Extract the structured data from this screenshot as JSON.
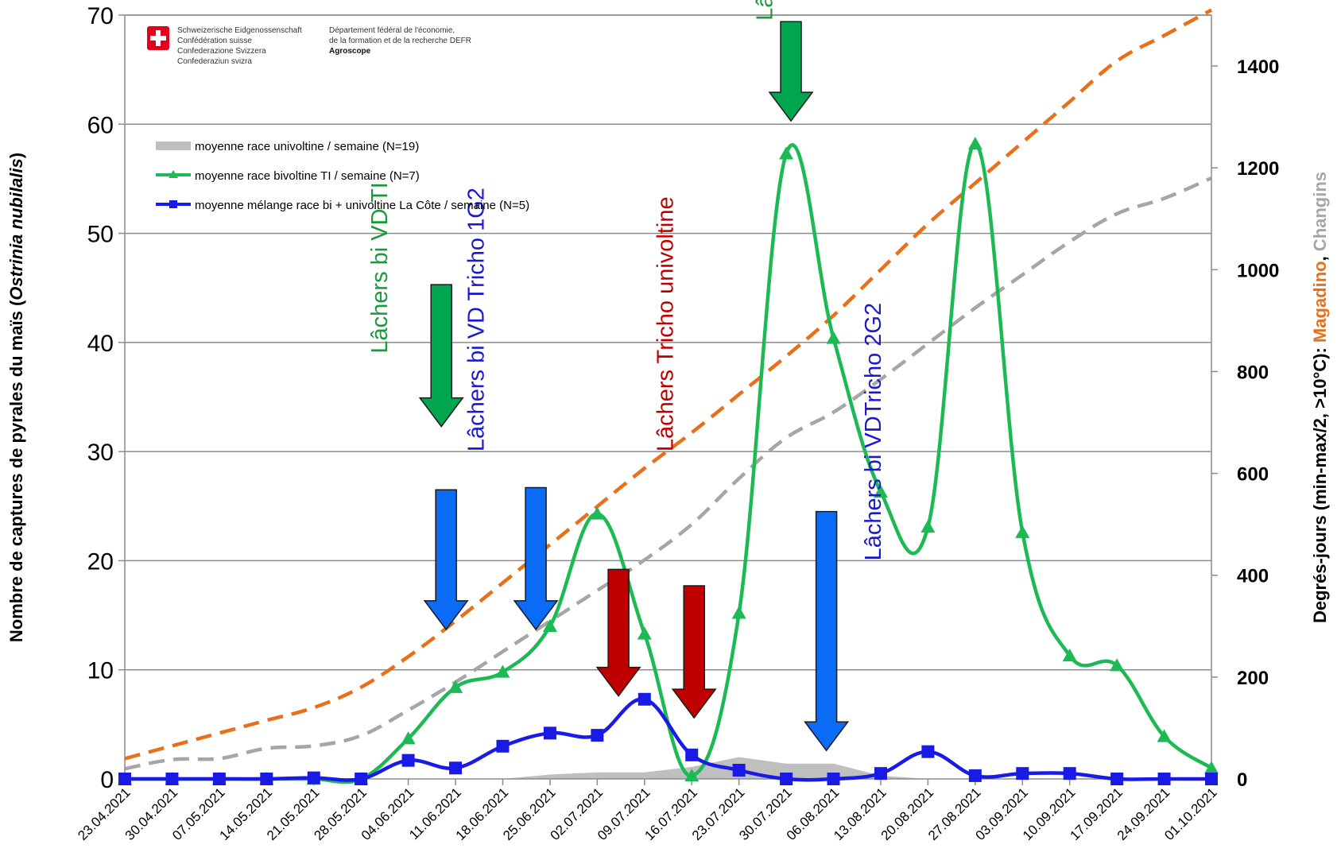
{
  "header": {
    "left_lines": [
      "Schweizerische Eidgenossenschaft",
      "Confédération suisse",
      "Confederazione Svizzera",
      "Confederaziun svizra"
    ],
    "right_lines": [
      "Département fédéral de l'économie,",
      "de la formation et de la recherche DEFR"
    ],
    "right_bold": "Agroscope"
  },
  "chart_data": {
    "type": "line",
    "x": [
      "23.04.2021",
      "30.04.2021",
      "07.05.2021",
      "14.05.2021",
      "21.05.2021",
      "28.05.2021",
      "04.06.2021",
      "11.06.2021",
      "18.06.2021",
      "25.06.2021",
      "02.07.2021",
      "09.07.2021",
      "16.07.2021",
      "23.07.2021",
      "30.07.2021",
      "06.08.2021",
      "13.08.2021",
      "20.08.2021",
      "27.08.2021",
      "03.09.2021",
      "10.09.2021",
      "17.09.2021",
      "24.09.2021",
      "01.10.2021"
    ],
    "ylabel_parts": [
      "Nombre de captures de pyrales du maïs (",
      "Ostrinia nubilalis",
      ")"
    ],
    "ylim": [
      0,
      70
    ],
    "yticks": [
      0,
      10,
      20,
      30,
      40,
      50,
      60,
      70
    ],
    "y2label_parts": [
      {
        "text": "Degrés-jours (min-max/2, >10°C): ",
        "color": "#000000"
      },
      {
        "text": "Magadino",
        "color": "#E8701A"
      },
      {
        "text": ", ",
        "color": "#000000"
      },
      {
        "text": "Changins",
        "color": "#A6A6A6"
      }
    ],
    "y2lim": [
      0,
      1500
    ],
    "y2ticks": [
      0,
      200,
      400,
      600,
      800,
      1000,
      1200,
      1400
    ],
    "grid": true,
    "legend_position": "top-left",
    "series": [
      {
        "name": "moyenne race univoltine / semaine (N=19)",
        "kind": "area",
        "color": "#BFBFBF",
        "values": [
          0,
          0,
          0,
          0,
          0,
          0,
          0,
          0,
          0,
          0.4,
          0.6,
          0.6,
          1.1,
          2.0,
          1.4,
          1.4,
          0.3,
          0,
          0,
          0,
          0,
          0,
          0,
          0
        ]
      },
      {
        "name": "moyenne race bivoltine TI / semaine (N=7)",
        "kind": "line",
        "marker": "triangle",
        "color": "#1DB954",
        "values": [
          0,
          0,
          0,
          0,
          0,
          0,
          3.7,
          8.4,
          9.8,
          14,
          24.3,
          13.3,
          0.3,
          15.2,
          57.3,
          40.4,
          26.3,
          23.1,
          58.2,
          22.6,
          11.3,
          10.4,
          3.9,
          1
        ]
      },
      {
        "name": "moyenne mélange race bi + univoltine La Côte / semaine (N=5)",
        "kind": "line",
        "marker": "square",
        "color": "#1A1AE6",
        "values": [
          0,
          0,
          0,
          0,
          0.1,
          0,
          1.7,
          1,
          3,
          4.2,
          4,
          7.3,
          2.2,
          0.8,
          0,
          0,
          0.5,
          2.5,
          0.3,
          0.5,
          0.5,
          0,
          0,
          0
        ]
      },
      {
        "kind": "dashed",
        "axis": "right",
        "color": "#E8701A",
        "values": [
          40,
          65,
          90,
          115,
          140,
          180,
          240,
          310,
          385,
          460,
          535,
          610,
          680,
          755,
          830,
          910,
          1000,
          1090,
          1170,
          1250,
          1330,
          1410,
          1460,
          1510
        ]
      },
      {
        "kind": "dashed",
        "axis": "right",
        "color": "#A6A6A6",
        "values": [
          20,
          38,
          40,
          60,
          65,
          85,
          135,
          190,
          250,
          310,
          370,
          430,
          500,
          590,
          670,
          720,
          785,
          855,
          925,
          990,
          1055,
          1110,
          1140,
          1180
        ]
      }
    ],
    "annotations": [
      {
        "text": "Lâchers bi VD TI",
        "color": "#1A9A3A",
        "x": 5.55,
        "y": 39
      },
      {
        "text": "Lâchers bi VD Tricho 1G2",
        "color": "#1A1ACC",
        "x": 7.6,
        "y": 30
      },
      {
        "text": "Lâchers Tricho univoltine",
        "color": "#C00000",
        "x": 11.6,
        "y": 30
      },
      {
        "text": "Lâchers bi VD TI",
        "color": "#1A9A3A",
        "x": 13.7,
        "y": 69.5
      },
      {
        "text": "Lâchers bi VDTricho 2G2",
        "color": "#1A1ACC",
        "x": 16.0,
        "y": 20
      }
    ],
    "arrows": [
      {
        "x": 6.7,
        "top": 45.3,
        "bottom": 32.3,
        "color": "#00A550"
      },
      {
        "x": 6.8,
        "top": 26.5,
        "bottom": 13.7,
        "color": "#0A6BF7"
      },
      {
        "x": 8.7,
        "top": 26.7,
        "bottom": 13.7,
        "color": "#0A6BF7"
      },
      {
        "x": 10.45,
        "top": 19.2,
        "bottom": 7.6,
        "color": "#C00000"
      },
      {
        "x": 12.05,
        "top": 17.7,
        "bottom": 5.6,
        "color": "#C00000"
      },
      {
        "x": 14.1,
        "top": 69.4,
        "bottom": 60.3,
        "color": "#00A550"
      },
      {
        "x": 14.85,
        "top": 24.5,
        "bottom": 2.6,
        "color": "#0A6BF7"
      }
    ]
  }
}
